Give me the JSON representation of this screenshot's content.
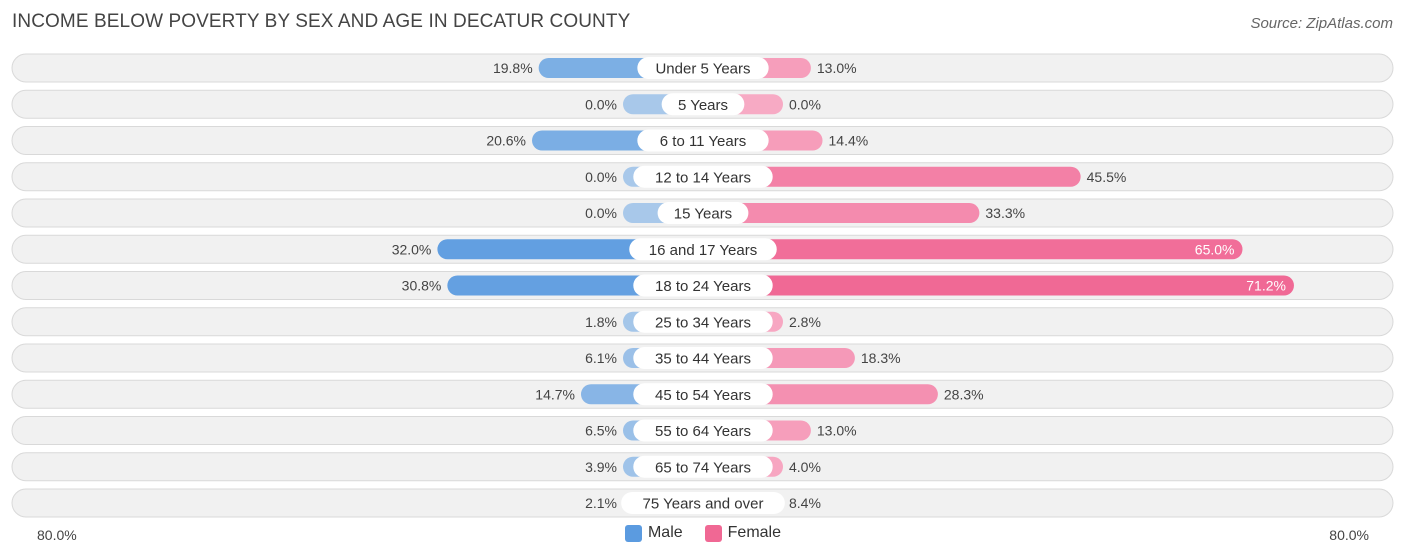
{
  "chart_data": {
    "type": "bar",
    "orientation": "horizontal-diverging",
    "title": "INCOME BELOW POVERTY BY SEX AND AGE IN DECATUR COUNTY",
    "source": "Source: ZipAtlas.com",
    "categories": [
      "Under 5 Years",
      "5 Years",
      "6 to 11 Years",
      "12 to 14 Years",
      "15 Years",
      "16 and 17 Years",
      "18 to 24 Years",
      "25 to 34 Years",
      "35 to 44 Years",
      "45 to 54 Years",
      "55 to 64 Years",
      "65 to 74 Years",
      "75 Years and over"
    ],
    "series": [
      {
        "name": "Male",
        "values": [
          19.8,
          0.0,
          20.6,
          0.0,
          0.0,
          32.0,
          30.8,
          1.8,
          6.1,
          14.7,
          6.5,
          3.9,
          2.1
        ],
        "labels": [
          "19.8%",
          "0.0%",
          "20.6%",
          "0.0%",
          "0.0%",
          "32.0%",
          "30.8%",
          "1.8%",
          "6.1%",
          "14.7%",
          "6.5%",
          "3.9%",
          "2.1%"
        ]
      },
      {
        "name": "Female",
        "values": [
          13.0,
          0.0,
          14.4,
          45.5,
          33.3,
          65.0,
          71.2,
          2.8,
          18.3,
          28.3,
          13.0,
          4.0,
          8.4
        ],
        "labels": [
          "13.0%",
          "0.0%",
          "14.4%",
          "45.5%",
          "33.3%",
          "65.0%",
          "71.2%",
          "2.8%",
          "18.3%",
          "28.3%",
          "13.0%",
          "4.0%",
          "8.4%"
        ]
      }
    ],
    "xlim": [
      -80,
      80
    ],
    "axis_left_label": "80.0%",
    "axis_right_label": "80.0%",
    "legend_position": "bottom-center",
    "colors": {
      "male_light": "#a8c8ea",
      "male_dark": "#5b9be0",
      "female_light": "#f7aac4",
      "female_dark": "#f06894",
      "row_bg": "#f1f1f1",
      "row_border": "#d9d9d9"
    }
  }
}
